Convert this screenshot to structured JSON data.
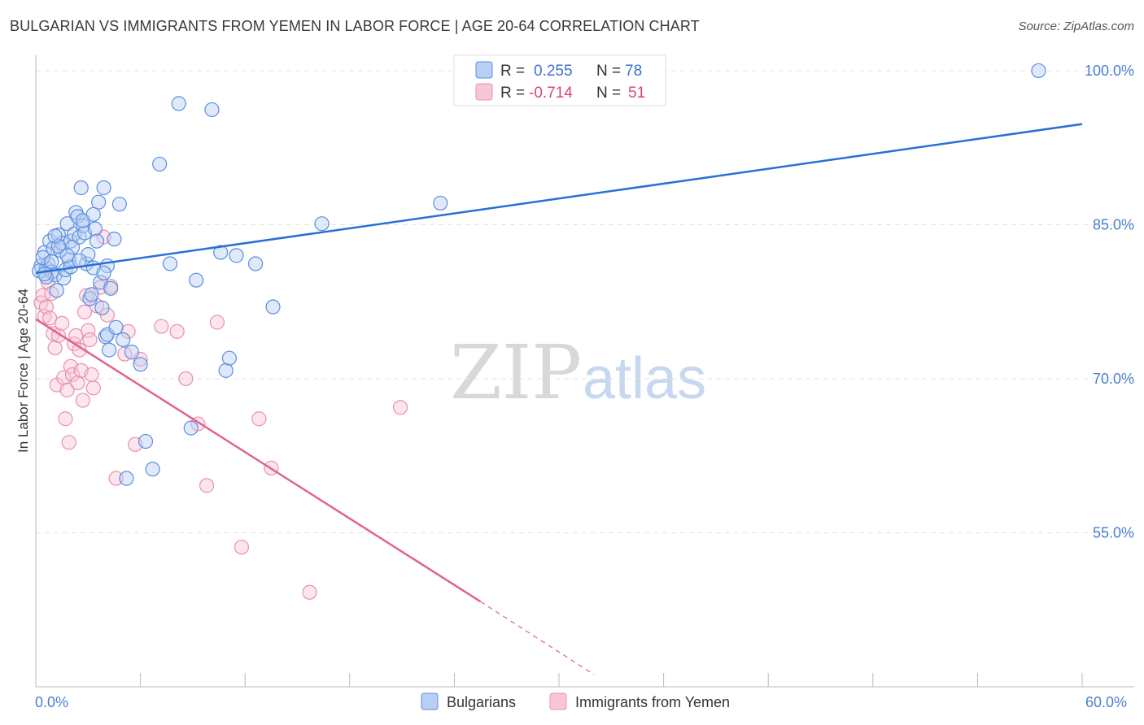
{
  "title": "BULGARIAN VS IMMIGRANTS FROM YEMEN IN LABOR FORCE | AGE 20-64 CORRELATION CHART",
  "source": "Source: ZipAtlas.com",
  "watermark": {
    "zip": "ZIP",
    "atlas": "atlas"
  },
  "colors": {
    "blue": "#5b8fe0",
    "blue_fill": "#b7cff2",
    "blue_line": "#2a6fd6",
    "pink": "#e891ad",
    "pink_fill": "#f8c6d6",
    "pink_line": "#e0628f",
    "tick_text": "#4a7fd0",
    "grid": "#e3e3e3"
  },
  "stats": {
    "blue": {
      "r_label": "R =",
      "r_value": "0.255",
      "n_label": "N =",
      "n_value": "78"
    },
    "pink": {
      "r_label": "R =",
      "r_value": "-0.714",
      "n_label": "N =",
      "n_value": "51"
    }
  },
  "legend": {
    "blue": "Bulgarians",
    "pink": "Immigrants from Yemen"
  },
  "chart_data": {
    "type": "scatter",
    "title": "BULGARIAN VS IMMIGRANTS FROM YEMEN IN LABOR FORCE | AGE 20-64 CORRELATION CHART",
    "ylabel": "In Labor Force | Age 20-64",
    "xlabel": "",
    "xlim": [
      0,
      60
    ],
    "ylim": [
      40,
      101.5
    ],
    "x_tick_labels": [
      "0.0%",
      "60.0%"
    ],
    "y_ticks": [
      55,
      70,
      85,
      100
    ],
    "y_tick_labels": [
      "55.0%",
      "70.0%",
      "85.0%",
      "100.0%"
    ],
    "legend_position": "bottom",
    "series": [
      {
        "name": "Bulgarians",
        "color": "#5b8fe0",
        "trend": {
          "x0": 0,
          "y0": 80.3,
          "x1": 60,
          "y1": 94.8
        },
        "points": [
          [
            0.3,
            81.0
          ],
          [
            0.5,
            82.3
          ],
          [
            0.6,
            80.8
          ],
          [
            0.7,
            81.2
          ],
          [
            0.8,
            83.4
          ],
          [
            0.9,
            80.4
          ],
          [
            1.0,
            82.7
          ],
          [
            1.1,
            80.1
          ],
          [
            1.2,
            78.6
          ],
          [
            1.3,
            84.0
          ],
          [
            1.4,
            82.5
          ],
          [
            1.5,
            83.2
          ],
          [
            1.6,
            79.8
          ],
          [
            1.7,
            80.6
          ],
          [
            1.8,
            85.1
          ],
          [
            1.9,
            81.6
          ],
          [
            2.0,
            83.4
          ],
          [
            2.1,
            82.8
          ],
          [
            2.2,
            84.1
          ],
          [
            2.3,
            86.2
          ],
          [
            2.4,
            85.8
          ],
          [
            2.5,
            83.8
          ],
          [
            2.6,
            88.6
          ],
          [
            2.7,
            84.9
          ],
          [
            2.8,
            84.2
          ],
          [
            2.9,
            81.2
          ],
          [
            3.0,
            82.1
          ],
          [
            3.1,
            77.8
          ],
          [
            3.2,
            78.2
          ],
          [
            3.3,
            80.8
          ],
          [
            3.4,
            84.6
          ],
          [
            3.5,
            83.4
          ],
          [
            3.6,
            87.2
          ],
          [
            3.7,
            79.4
          ],
          [
            3.8,
            76.9
          ],
          [
            3.9,
            88.6
          ],
          [
            4.0,
            74.1
          ],
          [
            4.1,
            74.3
          ],
          [
            4.2,
            72.8
          ],
          [
            4.3,
            78.8
          ],
          [
            4.5,
            83.6
          ],
          [
            4.6,
            75.0
          ],
          [
            4.8,
            87.0
          ],
          [
            5.0,
            73.8
          ],
          [
            5.2,
            60.3
          ],
          [
            5.5,
            72.6
          ],
          [
            6.0,
            71.4
          ],
          [
            6.3,
            63.9
          ],
          [
            6.7,
            61.2
          ],
          [
            7.1,
            90.9
          ],
          [
            7.7,
            81.2
          ],
          [
            8.2,
            96.8
          ],
          [
            8.9,
            65.2
          ],
          [
            9.2,
            79.6
          ],
          [
            10.1,
            96.2
          ],
          [
            10.6,
            82.3
          ],
          [
            10.9,
            70.8
          ],
          [
            11.1,
            72.0
          ],
          [
            11.5,
            82.0
          ],
          [
            12.6,
            81.2
          ],
          [
            13.6,
            77.0
          ],
          [
            16.4,
            85.1
          ],
          [
            23.2,
            87.1
          ],
          [
            57.5,
            100.0
          ],
          [
            0.4,
            81.8
          ],
          [
            0.9,
            81.4
          ],
          [
            1.3,
            82.9
          ],
          [
            2.0,
            80.9
          ],
          [
            0.2,
            80.5
          ],
          [
            0.6,
            79.9
          ],
          [
            1.1,
            83.9
          ],
          [
            2.7,
            85.4
          ],
          [
            3.3,
            86.0
          ],
          [
            4.1,
            81.0
          ],
          [
            0.5,
            80.2
          ],
          [
            1.8,
            82.0
          ],
          [
            2.5,
            81.5
          ],
          [
            3.9,
            80.3
          ]
        ]
      },
      {
        "name": "Immigrants from Yemen",
        "color": "#e891ad",
        "trend": {
          "x0": 0,
          "y0": 75.8,
          "x1": 25.5,
          "y1": 48.3,
          "dash_to_x": 32,
          "dash_to_y": 41.2
        },
        "points": [
          [
            0.3,
            77.4
          ],
          [
            0.4,
            78.1
          ],
          [
            0.5,
            76.1
          ],
          [
            0.6,
            77.0
          ],
          [
            0.7,
            79.4
          ],
          [
            0.8,
            75.9
          ],
          [
            0.9,
            78.3
          ],
          [
            1.0,
            74.4
          ],
          [
            1.1,
            73.0
          ],
          [
            1.2,
            69.4
          ],
          [
            1.3,
            74.2
          ],
          [
            1.5,
            75.4
          ],
          [
            1.6,
            70.1
          ],
          [
            1.7,
            66.1
          ],
          [
            1.8,
            68.9
          ],
          [
            1.9,
            63.8
          ],
          [
            2.0,
            71.2
          ],
          [
            2.1,
            70.4
          ],
          [
            2.2,
            73.4
          ],
          [
            2.3,
            74.2
          ],
          [
            2.4,
            69.6
          ],
          [
            2.5,
            72.8
          ],
          [
            2.6,
            70.8
          ],
          [
            2.7,
            67.9
          ],
          [
            2.8,
            76.5
          ],
          [
            2.9,
            78.1
          ],
          [
            3.0,
            74.7
          ],
          [
            3.1,
            73.8
          ],
          [
            3.2,
            70.4
          ],
          [
            3.3,
            69.1
          ],
          [
            3.5,
            77.1
          ],
          [
            3.7,
            78.9
          ],
          [
            3.9,
            83.8
          ],
          [
            4.1,
            76.2
          ],
          [
            4.3,
            79.0
          ],
          [
            4.6,
            60.3
          ],
          [
            5.1,
            72.4
          ],
          [
            5.3,
            74.6
          ],
          [
            5.7,
            63.6
          ],
          [
            6.0,
            71.9
          ],
          [
            7.2,
            75.1
          ],
          [
            8.1,
            74.6
          ],
          [
            8.6,
            70.0
          ],
          [
            9.3,
            65.6
          ],
          [
            9.8,
            59.6
          ],
          [
            10.4,
            75.5
          ],
          [
            11.8,
            53.6
          ],
          [
            12.8,
            66.1
          ],
          [
            13.5,
            61.3
          ],
          [
            15.7,
            49.2
          ],
          [
            20.9,
            67.2
          ]
        ]
      }
    ]
  }
}
